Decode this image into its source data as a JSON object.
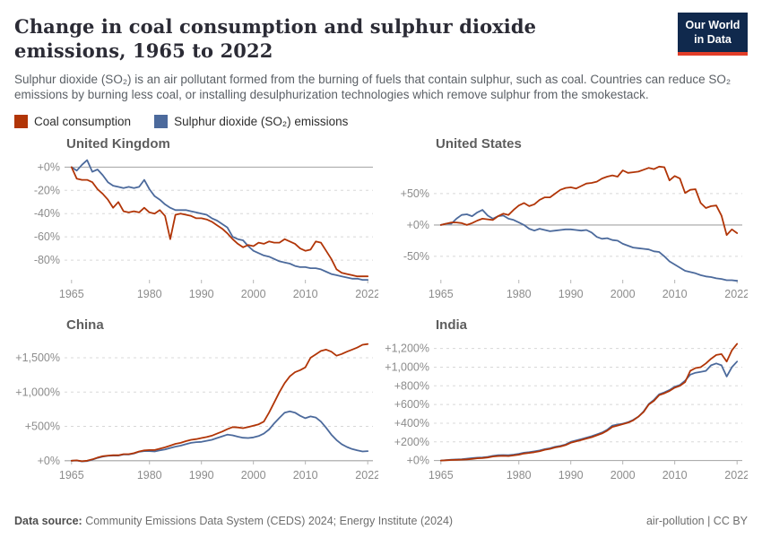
{
  "header": {
    "title": "Change in coal consumption and sulphur dioxide emissions, 1965 to 2022",
    "logo_line1": "Our World",
    "logo_line2": "in Data"
  },
  "subtitle": "Sulphur dioxide (SO₂) is an air pollutant formed from the burning of fuels that contain sulphur, such as coal. Countries can reduce SO₂ emissions by burning less coal, or installing desulphurization technologies which remove sulphur from the smokestack.",
  "legend": {
    "items": [
      {
        "label": "Coal consumption",
        "color_key": "coal"
      },
      {
        "label": "Sulphur dioxide (SO₂) emissions",
        "color_key": "so2"
      }
    ]
  },
  "colors": {
    "coal": "#b13507",
    "so2": "#4c6a9c",
    "zero_line": "#a3a3a3",
    "grid": "#d8d8d8",
    "tick_mark": "#b5b5b5",
    "logo_bg": "#10294d",
    "logo_bar": "#e23d28"
  },
  "years": [
    1965,
    1966,
    1967,
    1968,
    1969,
    1970,
    1971,
    1972,
    1973,
    1974,
    1975,
    1976,
    1977,
    1978,
    1979,
    1980,
    1981,
    1982,
    1983,
    1984,
    1985,
    1986,
    1987,
    1988,
    1989,
    1990,
    1991,
    1992,
    1993,
    1994,
    1995,
    1996,
    1997,
    1998,
    1999,
    2000,
    2001,
    2002,
    2003,
    2004,
    2005,
    2006,
    2007,
    2008,
    2009,
    2010,
    2011,
    2012,
    2013,
    2014,
    2015,
    2016,
    2017,
    2018,
    2019,
    2020,
    2021,
    2022
  ],
  "chart_data": [
    {
      "type": "line",
      "title": "United Kingdom",
      "ylim": [
        -100,
        8
      ],
      "yticks": [
        {
          "v": 0,
          "label": "+0%"
        },
        {
          "v": -20,
          "label": "-20%"
        },
        {
          "v": -40,
          "label": "-40%"
        },
        {
          "v": -60,
          "label": "-60%"
        },
        {
          "v": -80,
          "label": "-80%"
        }
      ],
      "xticks": [
        {
          "v": 1965,
          "label": "1965"
        },
        {
          "v": 1980,
          "label": "1980"
        },
        {
          "v": 1990,
          "label": "1990"
        },
        {
          "v": 2000,
          "label": "2000"
        },
        {
          "v": 2010,
          "label": "2010"
        },
        {
          "v": 2022,
          "label": "2022"
        }
      ],
      "series": [
        {
          "name": "Coal consumption",
          "color_key": "coal",
          "values": [
            0,
            -10,
            -11,
            -11,
            -13,
            -19,
            -23,
            -28,
            -35,
            -30,
            -38,
            -39,
            -38,
            -39,
            -35,
            -39,
            -40,
            -37,
            -42,
            -62,
            -41,
            -40,
            -41,
            -42,
            -44,
            -44,
            -45,
            -47,
            -50,
            -53,
            -57,
            -62,
            -66,
            -69,
            -67,
            -68,
            -65,
            -66,
            -64,
            -65,
            -65,
            -62,
            -64,
            -66,
            -70,
            -72,
            -71,
            -64,
            -65,
            -72,
            -79,
            -88,
            -91,
            -92,
            -93,
            -94,
            -94,
            -94
          ]
        },
        {
          "name": "Sulphur dioxide (SO₂) emissions",
          "color_key": "so2",
          "values": [
            0,
            -3,
            2,
            6,
            -4,
            -2,
            -7,
            -13,
            -16,
            -17,
            -18,
            -17,
            -18,
            -17,
            -11,
            -19,
            -25,
            -28,
            -32,
            -35,
            -37,
            -37,
            -37,
            -38,
            -39,
            -40,
            -41,
            -44,
            -46,
            -49,
            -52,
            -60,
            -62,
            -63,
            -68,
            -72,
            -74,
            -76,
            -77,
            -79,
            -81,
            -82,
            -83,
            -85,
            -86,
            -86,
            -87,
            -87,
            -88,
            -90,
            -92,
            -93,
            -94,
            -95,
            -96,
            -96,
            -97,
            -97
          ]
        }
      ]
    },
    {
      "type": "line",
      "title": "United States",
      "ylim": [
        -93,
        107
      ],
      "yticks": [
        {
          "v": 50,
          "label": "+50%"
        },
        {
          "v": 0,
          "label": "+0%"
        },
        {
          "v": -50,
          "label": "-50%"
        }
      ],
      "xticks": [
        {
          "v": 1965,
          "label": "1965"
        },
        {
          "v": 1980,
          "label": "1980"
        },
        {
          "v": 1990,
          "label": "1990"
        },
        {
          "v": 2000,
          "label": "2000"
        },
        {
          "v": 2010,
          "label": "2010"
        },
        {
          "v": 2022,
          "label": "2022"
        }
      ],
      "series": [
        {
          "name": "Coal consumption",
          "color_key": "coal",
          "values": [
            0,
            2,
            4,
            4,
            3,
            0,
            3,
            7,
            10,
            9,
            8,
            14,
            18,
            16,
            24,
            31,
            35,
            30,
            33,
            40,
            44,
            44,
            50,
            56,
            59,
            60,
            58,
            62,
            66,
            67,
            69,
            74,
            77,
            79,
            77,
            87,
            83,
            84,
            85,
            88,
            91,
            89,
            93,
            92,
            71,
            78,
            74,
            51,
            56,
            57,
            35,
            27,
            30,
            31,
            15,
            -16,
            -7,
            -13
          ]
        },
        {
          "name": "Sulphur dioxide (SO₂) emissions",
          "color_key": "so2",
          "values": [
            0,
            2,
            2,
            10,
            16,
            17,
            14,
            20,
            24,
            15,
            10,
            14,
            15,
            10,
            8,
            4,
            0,
            -6,
            -9,
            -6,
            -8,
            -10,
            -9,
            -8,
            -7,
            -7,
            -8,
            -9,
            -8,
            -12,
            -19,
            -22,
            -21,
            -24,
            -25,
            -30,
            -33,
            -36,
            -37,
            -38,
            -39,
            -42,
            -43,
            -50,
            -58,
            -63,
            -68,
            -73,
            -75,
            -77,
            -80,
            -82,
            -83,
            -85,
            -86,
            -88,
            -88,
            -89
          ]
        }
      ]
    },
    {
      "type": "line",
      "title": "China",
      "ylim": [
        -55,
        1775
      ],
      "yticks": [
        {
          "v": 1500,
          "label": "+1,500%"
        },
        {
          "v": 1000,
          "label": "+1,000%"
        },
        {
          "v": 500,
          "label": "+500%"
        },
        {
          "v": 0,
          "label": "+0%"
        }
      ],
      "xticks": [
        {
          "v": 1965,
          "label": "1965"
        },
        {
          "v": 1980,
          "label": "1980"
        },
        {
          "v": 1990,
          "label": "1990"
        },
        {
          "v": 2000,
          "label": "2000"
        },
        {
          "v": 2010,
          "label": "2010"
        },
        {
          "v": 2022,
          "label": "2022"
        }
      ],
      "series": [
        {
          "name": "Coal consumption",
          "color_key": "coal",
          "values": [
            0,
            5,
            -8,
            0,
            20,
            45,
            65,
            75,
            80,
            80,
            95,
            95,
            110,
            135,
            150,
            155,
            155,
            175,
            195,
            220,
            245,
            260,
            285,
            305,
            315,
            330,
            345,
            365,
            395,
            425,
            460,
            490,
            485,
            475,
            490,
            510,
            530,
            570,
            700,
            850,
            1000,
            1130,
            1230,
            1290,
            1320,
            1360,
            1500,
            1550,
            1600,
            1620,
            1590,
            1530,
            1555,
            1590,
            1620,
            1650,
            1690,
            1700
          ]
        },
        {
          "name": "Sulphur dioxide (SO₂) emissions",
          "color_key": "so2",
          "values": [
            0,
            3,
            -10,
            -5,
            15,
            40,
            60,
            70,
            75,
            75,
            90,
            90,
            105,
            130,
            140,
            140,
            135,
            150,
            165,
            185,
            205,
            220,
            240,
            260,
            270,
            275,
            290,
            305,
            330,
            355,
            380,
            370,
            350,
            335,
            330,
            340,
            360,
            395,
            455,
            545,
            625,
            700,
            720,
            700,
            655,
            620,
            645,
            630,
            570,
            480,
            380,
            300,
            240,
            200,
            170,
            150,
            135,
            140
          ]
        }
      ]
    },
    {
      "type": "line",
      "title": "India",
      "ylim": [
        -42,
        1302
      ],
      "yticks": [
        {
          "v": 1200,
          "label": "+1,200%"
        },
        {
          "v": 1000,
          "label": "+1,000%"
        },
        {
          "v": 800,
          "label": "+800%"
        },
        {
          "v": 600,
          "label": "+600%"
        },
        {
          "v": 400,
          "label": "+400%"
        },
        {
          "v": 200,
          "label": "+200%"
        },
        {
          "v": 0,
          "label": "+0%"
        }
      ],
      "xticks": [
        {
          "v": 1965,
          "label": "1965"
        },
        {
          "v": 1980,
          "label": "1980"
        },
        {
          "v": 1990,
          "label": "1990"
        },
        {
          "v": 2000,
          "label": "2000"
        },
        {
          "v": 2010,
          "label": "2010"
        },
        {
          "v": 2022,
          "label": "2022"
        }
      ],
      "series": [
        {
          "name": "Coal consumption",
          "color_key": "coal",
          "values": [
            0,
            3,
            6,
            8,
            10,
            13,
            18,
            24,
            27,
            33,
            43,
            48,
            50,
            48,
            55,
            63,
            75,
            82,
            90,
            100,
            115,
            125,
            140,
            150,
            165,
            190,
            205,
            220,
            235,
            250,
            270,
            290,
            320,
            360,
            375,
            390,
            405,
            430,
            470,
            520,
            600,
            640,
            700,
            720,
            745,
            780,
            800,
            840,
            960,
            990,
            1000,
            1040,
            1090,
            1130,
            1140,
            1060,
            1180,
            1250
          ]
        },
        {
          "name": "Sulphur dioxide (SO₂) emissions",
          "color_key": "so2",
          "values": [
            0,
            5,
            9,
            12,
            15,
            20,
            26,
            31,
            34,
            40,
            50,
            57,
            59,
            57,
            64,
            72,
            84,
            90,
            98,
            108,
            122,
            132,
            147,
            157,
            172,
            200,
            215,
            230,
            245,
            260,
            280,
            300,
            330,
            375,
            385,
            395,
            410,
            435,
            470,
            525,
            605,
            650,
            710,
            730,
            755,
            790,
            810,
            855,
            920,
            940,
            950,
            960,
            1020,
            1040,
            1020,
            900,
            1000,
            1060
          ]
        }
      ]
    }
  ],
  "footer": {
    "source_label": "Data source:",
    "source_text": " Community Emissions Data System (CEDS) 2024; Energy Institute (2024)",
    "right": "air-pollution | CC BY"
  }
}
